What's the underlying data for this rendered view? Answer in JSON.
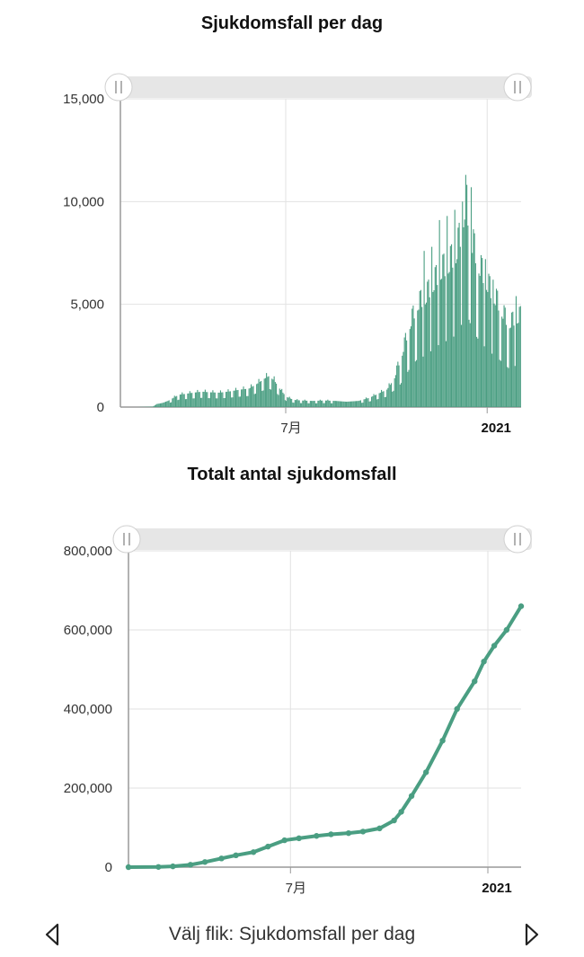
{
  "chart_data": [
    {
      "type": "bar",
      "title": "Sjukdomsfall per dag",
      "xlabel": "",
      "ylabel": "",
      "x_start": "2020-02-01",
      "x_end": "2021-02-01",
      "x_ticks": [
        {
          "date": "2020-07-01",
          "label": "7月",
          "bold": false
        },
        {
          "date": "2021-01-01",
          "label": "2021",
          "bold": true
        }
      ],
      "y_ticks": [
        0,
        5000,
        10000,
        15000
      ],
      "y_tick_labels": [
        "0",
        "5,000",
        "10,000",
        "15,000"
      ],
      "ylim": [
        0,
        15000
      ],
      "grid": true,
      "color": "#4a9e82",
      "series": [
        {
          "values_by_date": [
            [
              "2020-02-01",
              0
            ],
            [
              "2020-02-15",
              0
            ],
            [
              "2020-03-01",
              20
            ],
            [
              "2020-03-05",
              150
            ],
            [
              "2020-03-10",
              200
            ],
            [
              "2020-03-15",
              300
            ],
            [
              "2020-03-20",
              450
            ],
            [
              "2020-03-25",
              600
            ],
            [
              "2020-04-01",
              650
            ],
            [
              "2020-04-07",
              700
            ],
            [
              "2020-04-15",
              750
            ],
            [
              "2020-04-22",
              720
            ],
            [
              "2020-05-01",
              700
            ],
            [
              "2020-05-10",
              760
            ],
            [
              "2020-05-20",
              850
            ],
            [
              "2020-05-28",
              900
            ],
            [
              "2020-06-05",
              1150
            ],
            [
              "2020-06-10",
              1350
            ],
            [
              "2020-06-15",
              1500
            ],
            [
              "2020-06-20",
              1300
            ],
            [
              "2020-06-25",
              900
            ],
            [
              "2020-07-01",
              500
            ],
            [
              "2020-07-08",
              350
            ],
            [
              "2020-07-15",
              320
            ],
            [
              "2020-07-25",
              300
            ],
            [
              "2020-08-05",
              320
            ],
            [
              "2020-08-15",
              300
            ],
            [
              "2020-08-25",
              260
            ],
            [
              "2020-09-05",
              300
            ],
            [
              "2020-09-15",
              450
            ],
            [
              "2020-09-25",
              700
            ],
            [
              "2020-10-01",
              850
            ],
            [
              "2020-10-08",
              1400
            ],
            [
              "2020-10-15",
              2500
            ],
            [
              "2020-10-22",
              3800
            ],
            [
              "2020-10-29",
              4700
            ],
            [
              "2020-11-05",
              5000
            ],
            [
              "2020-11-12",
              5600
            ],
            [
              "2020-11-19",
              6200
            ],
            [
              "2020-11-26",
              6500
            ],
            [
              "2020-12-03",
              7000
            ],
            [
              "2020-12-08",
              8000
            ],
            [
              "2020-12-12",
              9500
            ],
            [
              "2020-12-18",
              7500
            ],
            [
              "2020-12-24",
              6500
            ],
            [
              "2020-12-30",
              5800
            ],
            [
              "2021-01-05",
              5200
            ],
            [
              "2021-01-10",
              4800
            ],
            [
              "2021-01-15",
              4300
            ],
            [
              "2021-01-20",
              3800
            ],
            [
              "2021-01-26",
              4000
            ],
            [
              "2021-02-01",
              4200
            ]
          ],
          "spikes": [
            [
              "2020-11-04",
              7600
            ],
            [
              "2020-11-11",
              7800
            ],
            [
              "2020-11-18",
              9100
            ],
            [
              "2020-11-25",
              9300
            ],
            [
              "2020-12-02",
              9600
            ],
            [
              "2020-12-09",
              10000
            ],
            [
              "2020-12-12",
              11300
            ],
            [
              "2020-12-17",
              10700
            ],
            [
              "2020-12-30",
              7200
            ],
            [
              "2021-01-06",
              6200
            ],
            [
              "2021-01-27",
              5400
            ]
          ]
        }
      ]
    },
    {
      "type": "line",
      "title": "Totalt antal sjukdomsfall",
      "xlabel": "",
      "ylabel": "",
      "x_start": "2020-02-01",
      "x_end": "2021-02-01",
      "x_ticks": [
        {
          "date": "2020-07-01",
          "label": "7月",
          "bold": false
        },
        {
          "date": "2021-01-01",
          "label": "2021",
          "bold": true
        }
      ],
      "y_ticks": [
        0,
        200000,
        400000,
        600000,
        800000
      ],
      "y_tick_labels": [
        "0",
        "200,000",
        "400,000",
        "600,000",
        "800,000"
      ],
      "ylim": [
        0,
        800000
      ],
      "grid": true,
      "color": "#4a9e82",
      "series": [
        {
          "points": [
            [
              "2020-02-01",
              0
            ],
            [
              "2020-03-01",
              500
            ],
            [
              "2020-03-15",
              2000
            ],
            [
              "2020-04-01",
              6000
            ],
            [
              "2020-04-15",
              13000
            ],
            [
              "2020-05-01",
              22000
            ],
            [
              "2020-05-15",
              30000
            ],
            [
              "2020-06-01",
              38000
            ],
            [
              "2020-06-15",
              52000
            ],
            [
              "2020-07-01",
              68000
            ],
            [
              "2020-07-15",
              73000
            ],
            [
              "2020-08-01",
              79000
            ],
            [
              "2020-08-15",
              83000
            ],
            [
              "2020-09-01",
              86000
            ],
            [
              "2020-09-15",
              90000
            ],
            [
              "2020-10-01",
              98000
            ],
            [
              "2020-10-15",
              118000
            ],
            [
              "2020-10-22",
              140000
            ],
            [
              "2020-11-01",
              180000
            ],
            [
              "2020-11-15",
              240000
            ],
            [
              "2020-12-01",
              320000
            ],
            [
              "2020-12-15",
              400000
            ],
            [
              "2021-01-01",
              470000
            ],
            [
              "2021-01-10",
              520000
            ],
            [
              "2021-01-20",
              560000
            ],
            [
              "2021-02-01",
              600000
            ],
            [
              "2021-02-15",
              660000
            ]
          ]
        }
      ]
    }
  ],
  "footer": {
    "label": "Välj flik: Sjukdomsfall per dag"
  }
}
